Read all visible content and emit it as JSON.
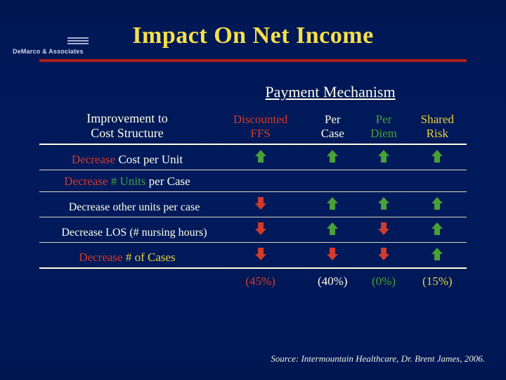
{
  "logo_text": "DeMarco & Associates",
  "title": "Impact On Net Income",
  "section_header": "Payment Mechanism",
  "row_header": "Improvement to\nCost Structure",
  "columns": [
    {
      "label": "Discounted\nFFS",
      "color": "#d23a2a"
    },
    {
      "label": "Per\nCase",
      "color": "#ffffe6"
    },
    {
      "label": "Per\nDiem",
      "color": "#4aa038"
    },
    {
      "label": "Shared\nRisk",
      "color": "#e8d23a"
    }
  ],
  "rows": [
    {
      "label": "Decrease Cost per Unit",
      "indent": false,
      "word_colors": [
        "#d23a2a",
        "#ffffe6",
        "#ffffe6",
        "#ffffe6"
      ],
      "cells": [
        {
          "arrow": "up",
          "color": "#4aa038"
        },
        {
          "arrow": "up",
          "color": "#4aa038"
        },
        {
          "arrow": "up",
          "color": "#4aa038"
        },
        {
          "arrow": "up",
          "color": "#4aa038"
        }
      ]
    },
    {
      "label": "Decrease # Units per Case",
      "indent": false,
      "word_colors": [
        "#d23a2a",
        "#4aa038",
        "#4aa038",
        "#ffffe6",
        "#ffffe6"
      ],
      "cells": [
        {
          "arrow": "",
          "color": ""
        },
        {
          "arrow": "",
          "color": ""
        },
        {
          "arrow": "",
          "color": ""
        },
        {
          "arrow": "",
          "color": ""
        }
      ]
    },
    {
      "label": "Decrease other units per case",
      "indent": true,
      "word_colors": [
        "#ffffe6",
        "#ffffe6",
        "#ffffe6",
        "#ffffe6",
        "#ffffe6"
      ],
      "cells": [
        {
          "arrow": "down",
          "color": "#d23a2a"
        },
        {
          "arrow": "up",
          "color": "#4aa038"
        },
        {
          "arrow": "up",
          "color": "#4aa038"
        },
        {
          "arrow": "up",
          "color": "#4aa038"
        }
      ]
    },
    {
      "label": "Decrease LOS (# nursing hours)",
      "indent": true,
      "word_colors": [
        "#ffffe6",
        "#ffffe6",
        "#ffffe6",
        "#ffffe6",
        "#ffffe6"
      ],
      "cells": [
        {
          "arrow": "down",
          "color": "#d23a2a"
        },
        {
          "arrow": "up",
          "color": "#4aa038"
        },
        {
          "arrow": "down",
          "color": "#d23a2a"
        },
        {
          "arrow": "up",
          "color": "#4aa038"
        }
      ]
    },
    {
      "label": "Decrease # of Cases",
      "indent": false,
      "word_colors": [
        "#d23a2a",
        "#e8d23a",
        "#e8d23a",
        "#e8d23a"
      ],
      "cells": [
        {
          "arrow": "down",
          "color": "#d23a2a"
        },
        {
          "arrow": "down",
          "color": "#d23a2a"
        },
        {
          "arrow": "down",
          "color": "#d23a2a"
        },
        {
          "arrow": "up",
          "color": "#4aa038"
        }
      ]
    }
  ],
  "percents": [
    {
      "text": "(45%)",
      "color": "#d23a2a"
    },
    {
      "text": "(40%)",
      "color": "#ffffe6"
    },
    {
      "text": "(0%)",
      "color": "#4aa038"
    },
    {
      "text": "(15%)",
      "color": "#e8d23a"
    }
  ],
  "footer": "Source: Intermountain Healthcare, Dr. Brent James, 2006.",
  "arrow_glyph_up": "⇧",
  "arrow_glyph_down": "⇩"
}
